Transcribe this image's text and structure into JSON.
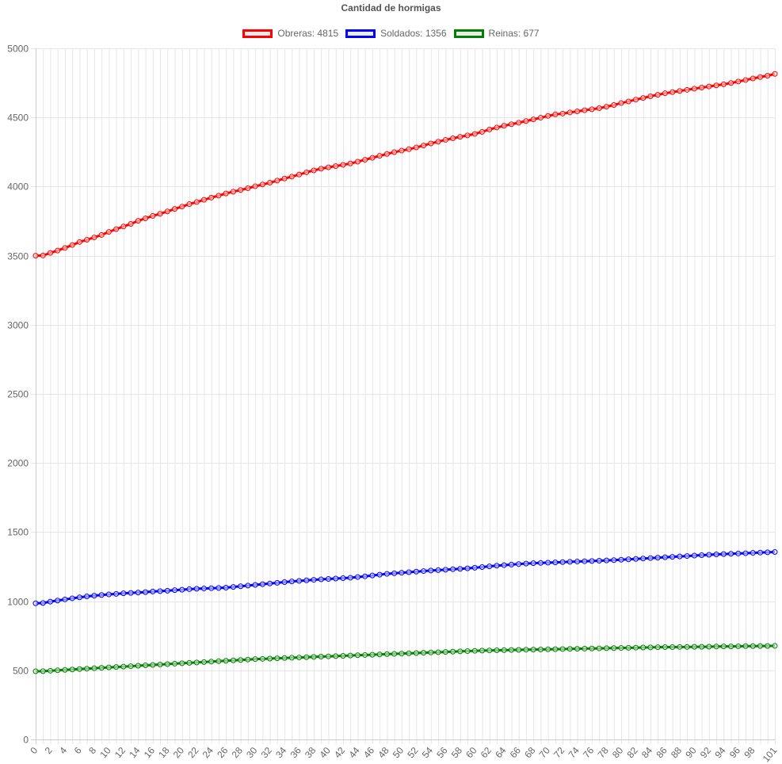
{
  "chart_data": {
    "type": "line",
    "title": "Cantidad de hormigas",
    "xlabel": "",
    "ylabel": "",
    "ylim": [
      0,
      5000
    ],
    "y_ticks": [
      0,
      500,
      1000,
      1500,
      2000,
      2500,
      3000,
      3500,
      4000,
      4500,
      5000
    ],
    "x": [
      0,
      1,
      2,
      3,
      4,
      5,
      6,
      7,
      8,
      9,
      10,
      11,
      12,
      13,
      14,
      15,
      16,
      17,
      18,
      19,
      20,
      21,
      22,
      23,
      24,
      25,
      26,
      27,
      28,
      29,
      30,
      31,
      32,
      33,
      34,
      35,
      36,
      37,
      38,
      39,
      40,
      41,
      42,
      43,
      44,
      45,
      46,
      47,
      48,
      49,
      50,
      51,
      52,
      53,
      54,
      55,
      56,
      57,
      58,
      59,
      60,
      61,
      62,
      63,
      64,
      65,
      66,
      67,
      68,
      69,
      70,
      71,
      72,
      73,
      74,
      75,
      76,
      77,
      78,
      79,
      80,
      81,
      82,
      83,
      84,
      85,
      86,
      87,
      88,
      89,
      90,
      91,
      92,
      93,
      94,
      95,
      96,
      97,
      98,
      99,
      100,
      101
    ],
    "x_tick_labels": [
      "0",
      "2",
      "4",
      "6",
      "8",
      "10",
      "12",
      "14",
      "16",
      "18",
      "20",
      "22",
      "24",
      "26",
      "28",
      "30",
      "32",
      "34",
      "36",
      "38",
      "40",
      "42",
      "44",
      "46",
      "48",
      "50",
      "52",
      "54",
      "56",
      "58",
      "60",
      "62",
      "64",
      "66",
      "68",
      "70",
      "72",
      "74",
      "76",
      "78",
      "80",
      "82",
      "84",
      "86",
      "88",
      "90",
      "92",
      "94",
      "96",
      "98",
      "101"
    ],
    "grid": true,
    "legend_position": "top",
    "series": [
      {
        "name": "Obreras: 4815",
        "color": "#ff0000",
        "values": [
          3500,
          3501,
          3520,
          3537,
          3556,
          3577,
          3599,
          3615,
          3632,
          3650,
          3672,
          3692,
          3711,
          3730,
          3752,
          3770,
          3788,
          3803,
          3820,
          3838,
          3855,
          3873,
          3888,
          3904,
          3920,
          3934,
          3950,
          3963,
          3975,
          3988,
          4002,
          4015,
          4028,
          4043,
          4058,
          4072,
          4087,
          4103,
          4117,
          4129,
          4139,
          4148,
          4157,
          4167,
          4180,
          4194,
          4208,
          4222,
          4236,
          4249,
          4260,
          4270,
          4283,
          4297,
          4312,
          4325,
          4338,
          4349,
          4360,
          4370,
          4381,
          4396,
          4413,
          4427,
          4440,
          4451,
          4462,
          4474,
          4486,
          4498,
          4511,
          4522,
          4528,
          4536,
          4544,
          4552,
          4559,
          4567,
          4578,
          4590,
          4604,
          4616,
          4629,
          4641,
          4653,
          4664,
          4675,
          4683,
          4692,
          4700,
          4708,
          4716,
          4724,
          4732,
          4740,
          4749,
          4760,
          4771,
          4782,
          4792,
          4802,
          4815
        ]
      },
      {
        "name": "Soldados: 1356",
        "color": "#0000ff",
        "values": [
          985,
          987,
          997,
          1005,
          1013,
          1021,
          1028,
          1035,
          1040,
          1045,
          1049,
          1053,
          1057,
          1060,
          1063,
          1066,
          1070,
          1073,
          1076,
          1080,
          1083,
          1087,
          1090,
          1092,
          1094,
          1096,
          1098,
          1103,
          1108,
          1113,
          1118,
          1123,
          1128,
          1133,
          1138,
          1143,
          1147,
          1151,
          1155,
          1158,
          1161,
          1164,
          1167,
          1170,
          1175,
          1180,
          1186,
          1192,
          1198,
          1202,
          1206,
          1210,
          1214,
          1218,
          1222,
          1225,
          1228,
          1231,
          1234,
          1238,
          1242,
          1247,
          1252,
          1257,
          1261,
          1265,
          1269,
          1272,
          1275,
          1277,
          1279,
          1281,
          1283,
          1285,
          1287,
          1289,
          1291,
          1293,
          1295,
          1297,
          1300,
          1303,
          1306,
          1309,
          1312,
          1315,
          1318,
          1321,
          1324,
          1327,
          1330,
          1333,
          1336,
          1339,
          1341,
          1343,
          1345,
          1347,
          1350,
          1352,
          1354,
          1356
        ]
      },
      {
        "name": "Reinas: 677",
        "color": "#008000",
        "values": [
          493,
          494,
          497,
          500,
          503,
          506,
          509,
          512,
          515,
          518,
          521,
          524,
          527,
          530,
          533,
          536,
          539,
          542,
          545,
          548,
          551,
          554,
          557,
          560,
          563,
          566,
          569,
          572,
          575,
          578,
          581,
          583,
          585,
          587,
          589,
          591,
          593,
          595,
          597,
          599,
          601,
          603,
          605,
          607,
          609,
          611,
          613,
          615,
          617,
          619,
          621,
          623,
          625,
          627,
          629,
          631,
          633,
          635,
          637,
          639,
          641,
          643,
          644,
          645,
          646,
          647,
          648,
          649,
          650,
          651,
          652,
          653,
          654,
          655,
          656,
          657,
          658,
          659,
          660,
          661,
          662,
          663,
          664,
          665,
          666,
          667,
          668,
          668,
          669,
          669,
          670,
          670,
          671,
          672,
          673,
          673,
          674,
          675,
          675,
          676,
          676,
          677
        ]
      }
    ]
  }
}
